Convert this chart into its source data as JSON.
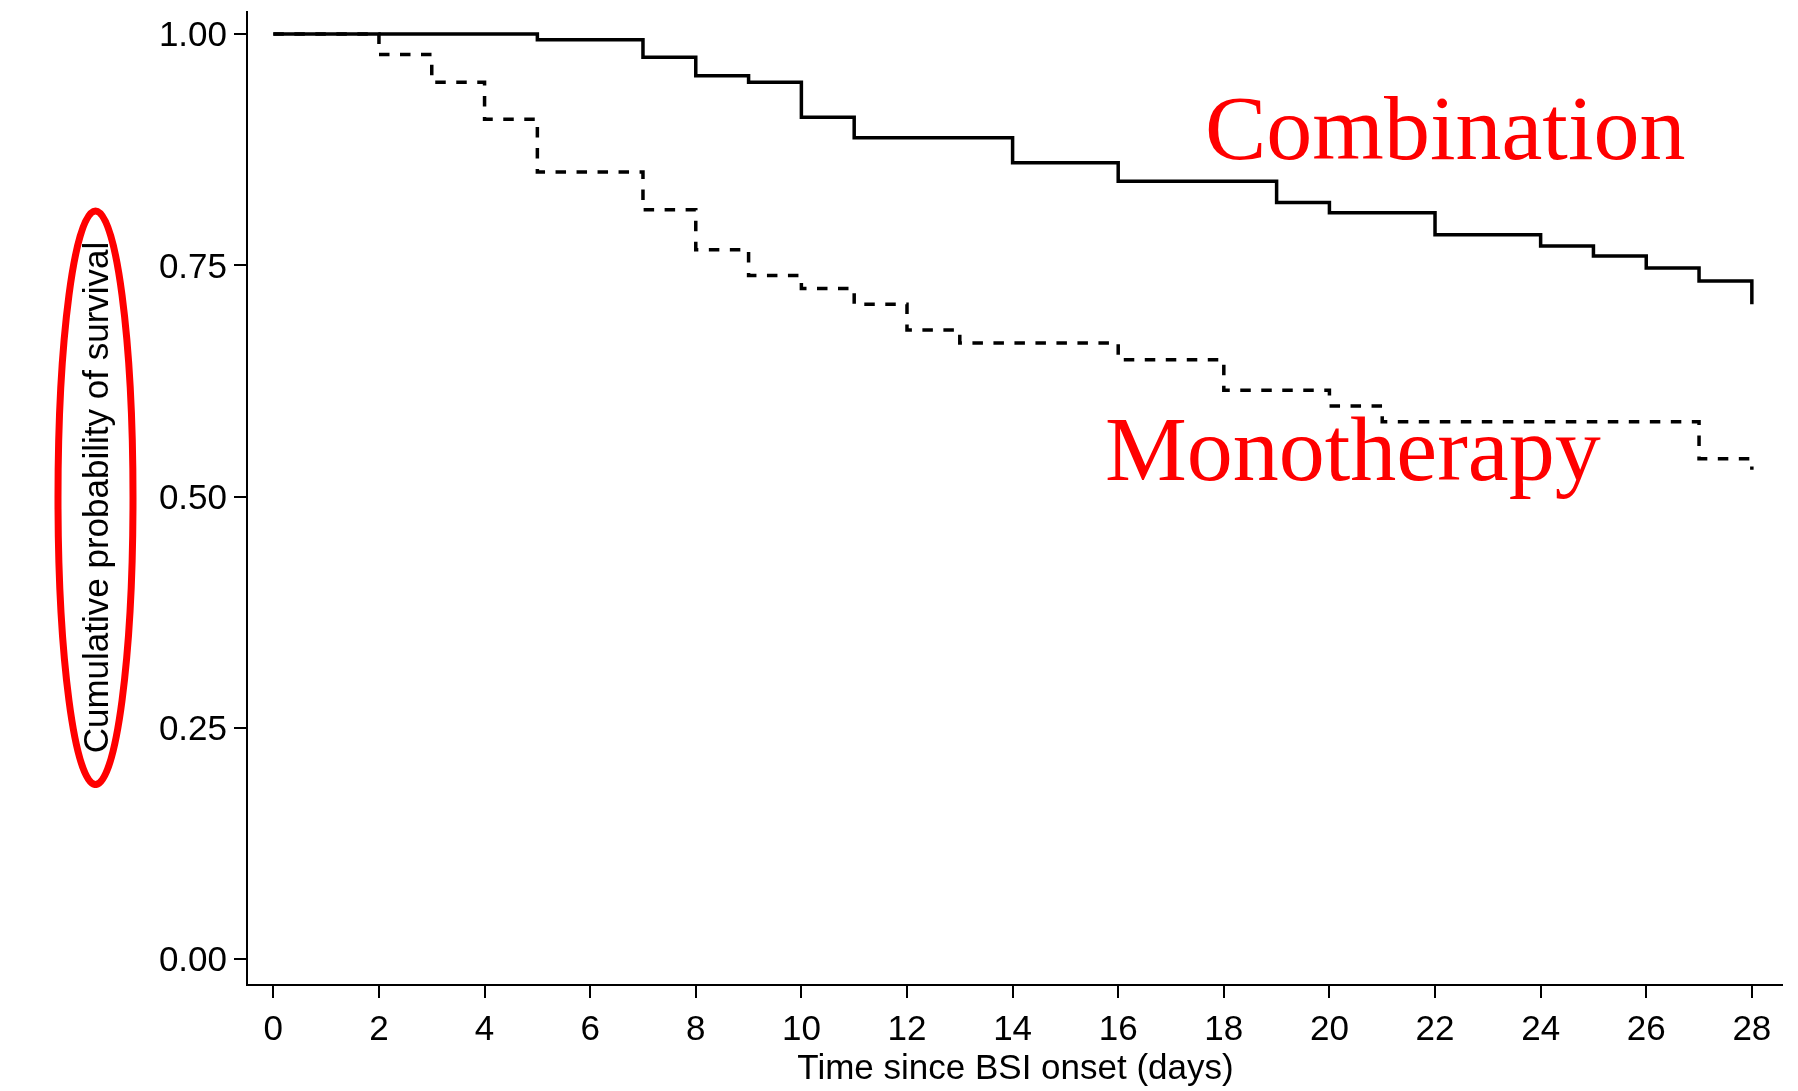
{
  "chart_data": {
    "type": "step",
    "xlabel": "Time since BSI onset (days)",
    "ylabel": "Cumulative probability of survival",
    "xlim": [
      -0.48,
      28.59
    ],
    "xticks": [
      0,
      2,
      4,
      6,
      8,
      10,
      12,
      14,
      16,
      18,
      20,
      22,
      24,
      26,
      28
    ],
    "ylim": [
      -0.027,
      1.025
    ],
    "yticks": [
      {
        "value": 0,
        "label": "0.00"
      },
      {
        "value": 0.25,
        "label": "0.25"
      },
      {
        "value": 0.5,
        "label": "0.50"
      },
      {
        "value": 0.75,
        "label": "0.75"
      },
      {
        "value": 1,
        "label": "1.00"
      }
    ],
    "grid": false,
    "legend": false,
    "series": [
      {
        "name": "Combination",
        "color": "#000000",
        "line_style": "solid",
        "x": [
          0,
          5,
          7,
          8,
          9,
          10,
          11,
          14,
          16,
          19,
          20,
          22,
          24,
          25,
          26,
          27,
          28
        ],
        "values": [
          1,
          0.994,
          0.975,
          0.955,
          0.948,
          0.91,
          0.888,
          0.861,
          0.841,
          0.818,
          0.807,
          0.783,
          0.771,
          0.76,
          0.747,
          0.733,
          0.708
        ]
      },
      {
        "name": "Monotherapy",
        "color": "#000000",
        "line_style": "dashed",
        "x": [
          0,
          2,
          3,
          4,
          5,
          7,
          8,
          9,
          10,
          11,
          12,
          13,
          16,
          18,
          20,
          21,
          27,
          28
        ],
        "values": [
          1,
          0.978,
          0.948,
          0.908,
          0.851,
          0.81,
          0.767,
          0.739,
          0.725,
          0.708,
          0.68,
          0.666,
          0.648,
          0.615,
          0.598,
          0.581,
          0.541,
          0.529
        ]
      }
    ]
  }
}
